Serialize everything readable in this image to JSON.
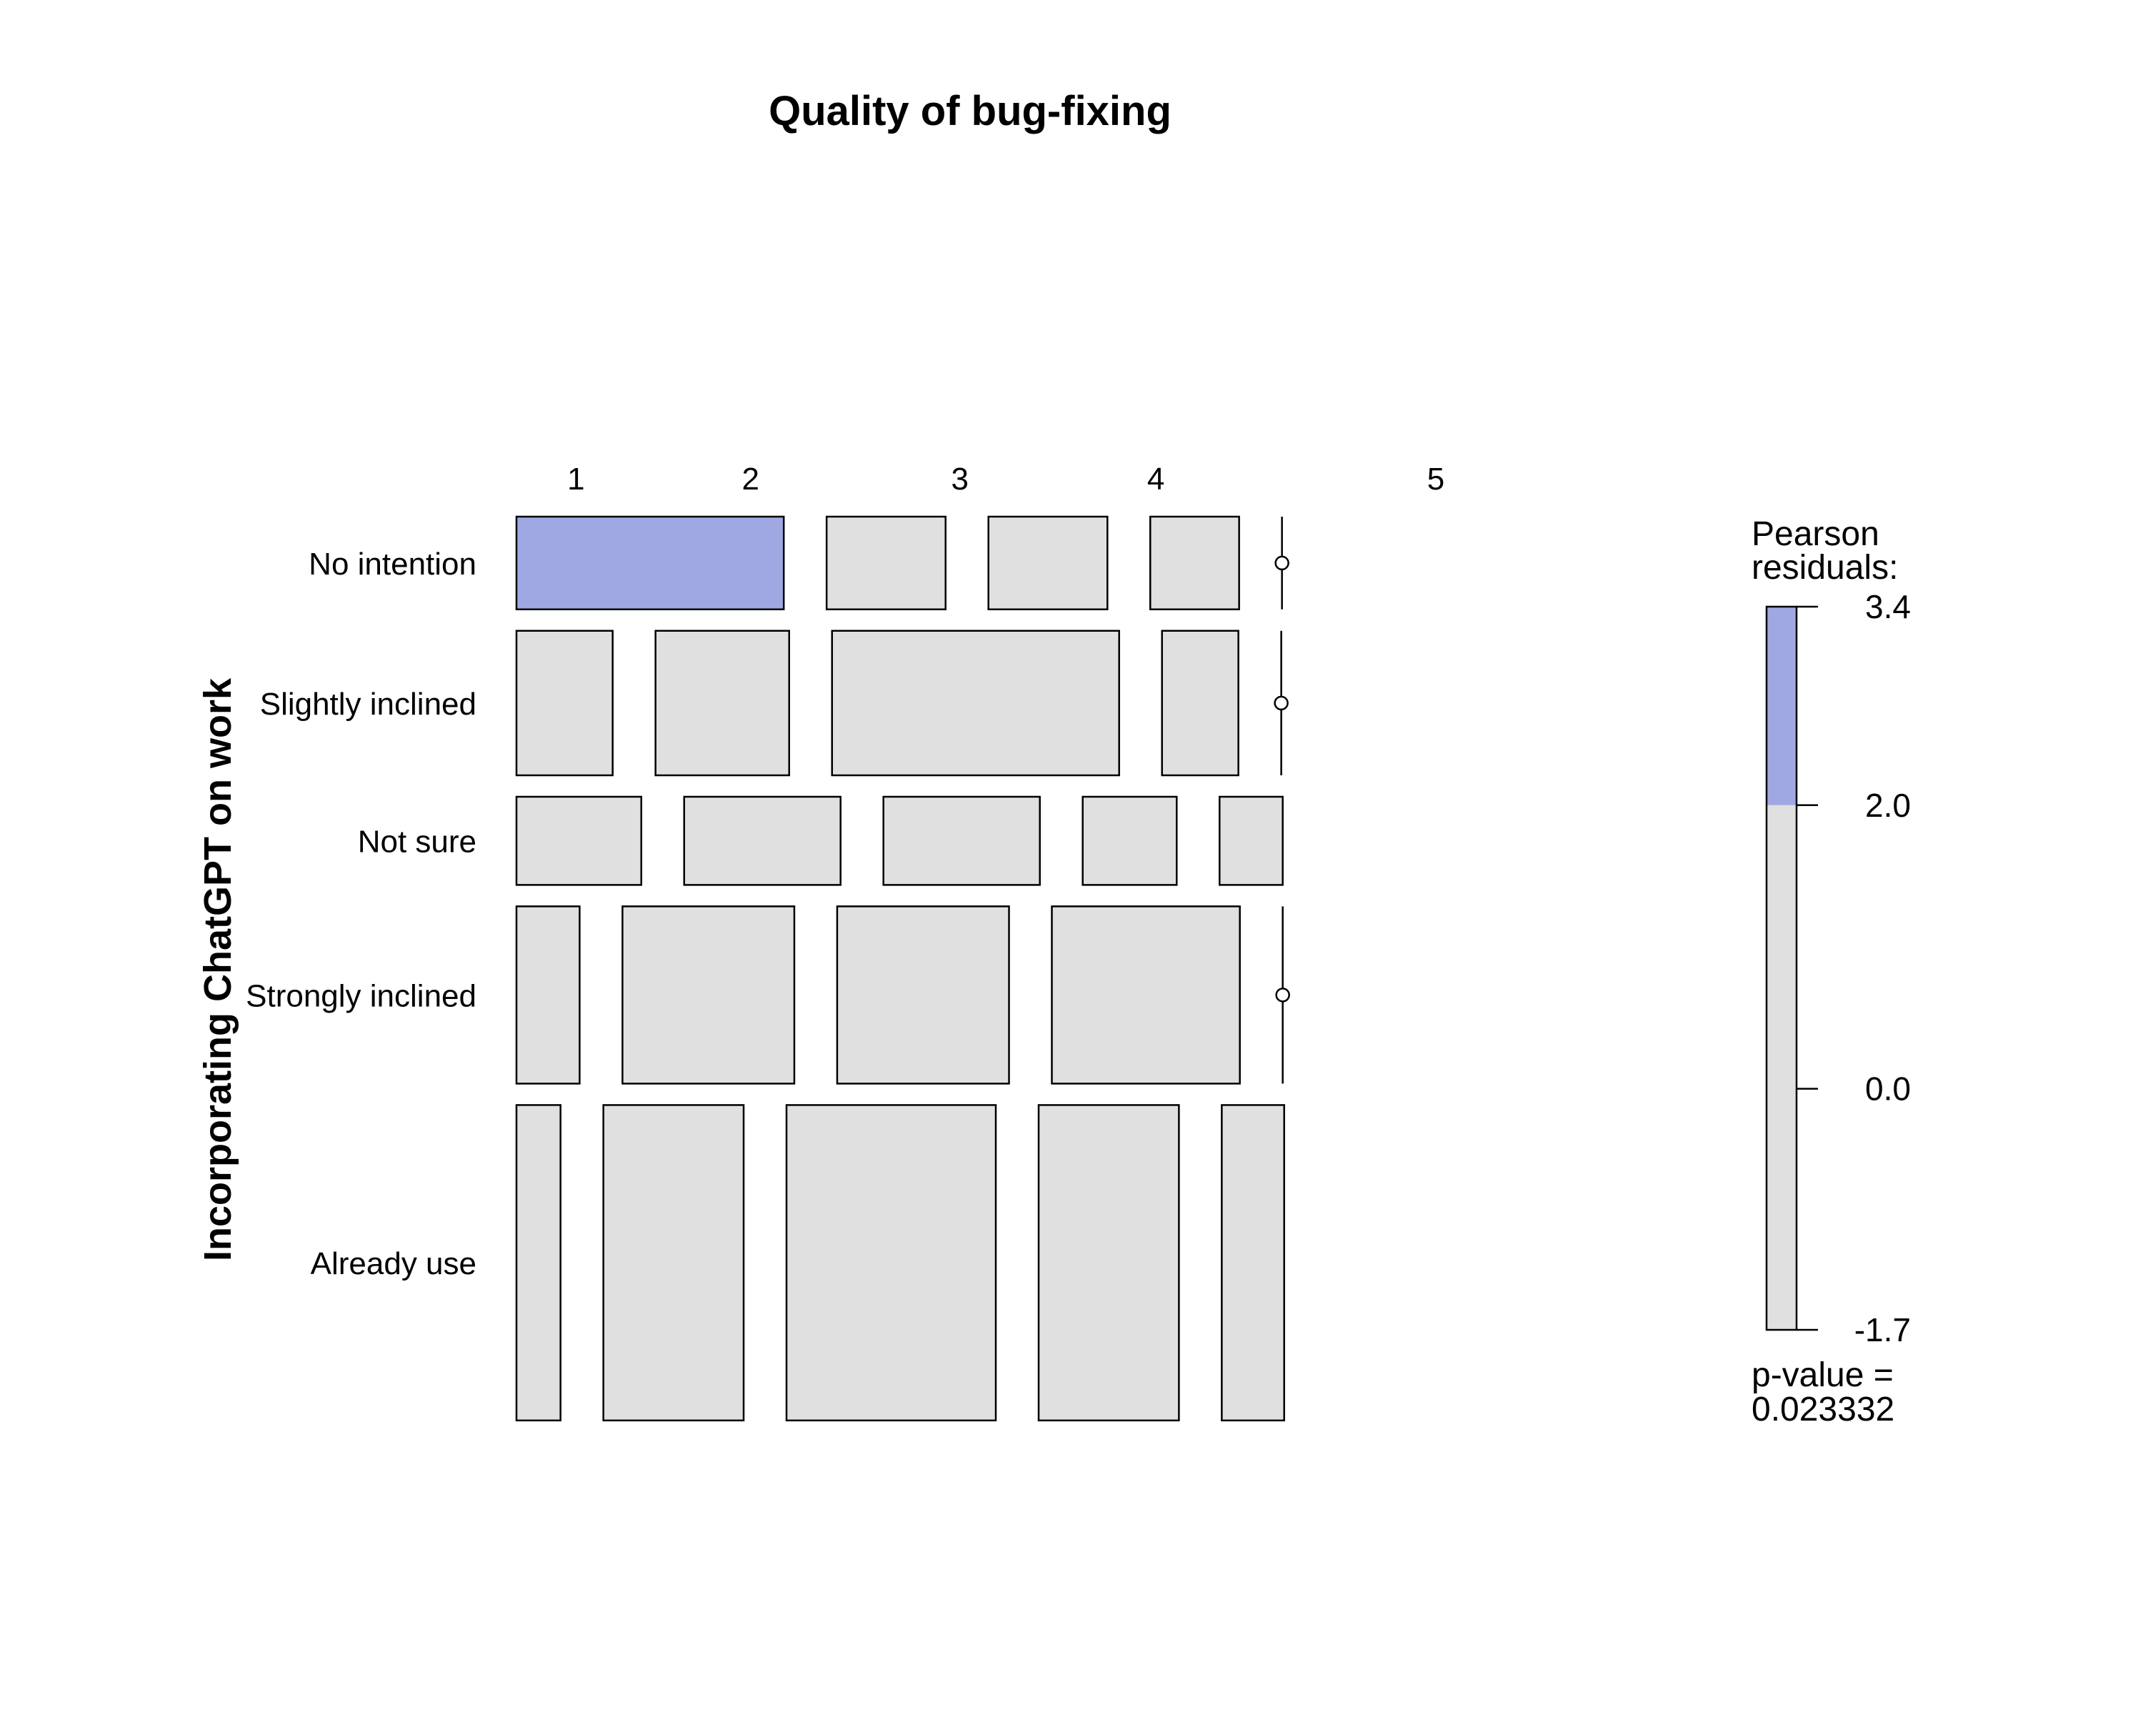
{
  "chart_data": {
    "type": "mosaic",
    "title": "Quality of bug-fixing",
    "ylabel": "Incorporating ChatGPT on work",
    "columns": [
      "1",
      "2",
      "3",
      "4",
      "5"
    ],
    "rows": [
      "No intention",
      "Slightly inclined",
      "Not sure",
      "Strongly inclined",
      "Already use"
    ],
    "row_proportions": [
      0.102,
      0.159,
      0.097,
      0.195,
      0.347
    ],
    "cell_proportions": [
      [
        0.364,
        0.162,
        0.162,
        0.121,
        0.0
      ],
      [
        0.131,
        0.182,
        0.391,
        0.104,
        0.0
      ],
      [
        0.17,
        0.213,
        0.213,
        0.128,
        0.086
      ],
      [
        0.086,
        0.234,
        0.234,
        0.256,
        0.0
      ],
      [
        0.06,
        0.191,
        0.285,
        0.191,
        0.085
      ]
    ],
    "residual_fill": [
      [
        "#9fa8e2",
        "#e0e0e0",
        "#e0e0e0",
        "#e0e0e0",
        "#e0e0e0"
      ],
      [
        "#e0e0e0",
        "#e0e0e0",
        "#e0e0e0",
        "#e0e0e0",
        "#e0e0e0"
      ],
      [
        "#e0e0e0",
        "#e0e0e0",
        "#e0e0e0",
        "#e0e0e0",
        "#e0e0e0"
      ],
      [
        "#e0e0e0",
        "#e0e0e0",
        "#e0e0e0",
        "#e0e0e0",
        "#e0e0e0"
      ],
      [
        "#e0e0e0",
        "#e0e0e0",
        "#e0e0e0",
        "#e0e0e0",
        "#e0e0e0"
      ]
    ],
    "legend": {
      "title_line1": "Pearson",
      "title_line2": "residuals:",
      "ticks": [
        3.4,
        2.0,
        0.0,
        -1.7
      ],
      "tick_labels": [
        "3.4",
        "2.0",
        "0.0",
        "-1.7"
      ],
      "range": [
        -1.7,
        3.4
      ],
      "bands": [
        {
          "from": 2.0,
          "to": 3.4,
          "color": "#9fa8e2"
        },
        {
          "from": -1.7,
          "to": 2.0,
          "color": "#e0e0e0"
        }
      ],
      "pvalue_line1": "p-value =",
      "pvalue_line2": "0.023332"
    },
    "colors": {
      "positive": "#9fa8e2",
      "neutral": "#e0e0e0",
      "stroke": "#000000"
    }
  }
}
